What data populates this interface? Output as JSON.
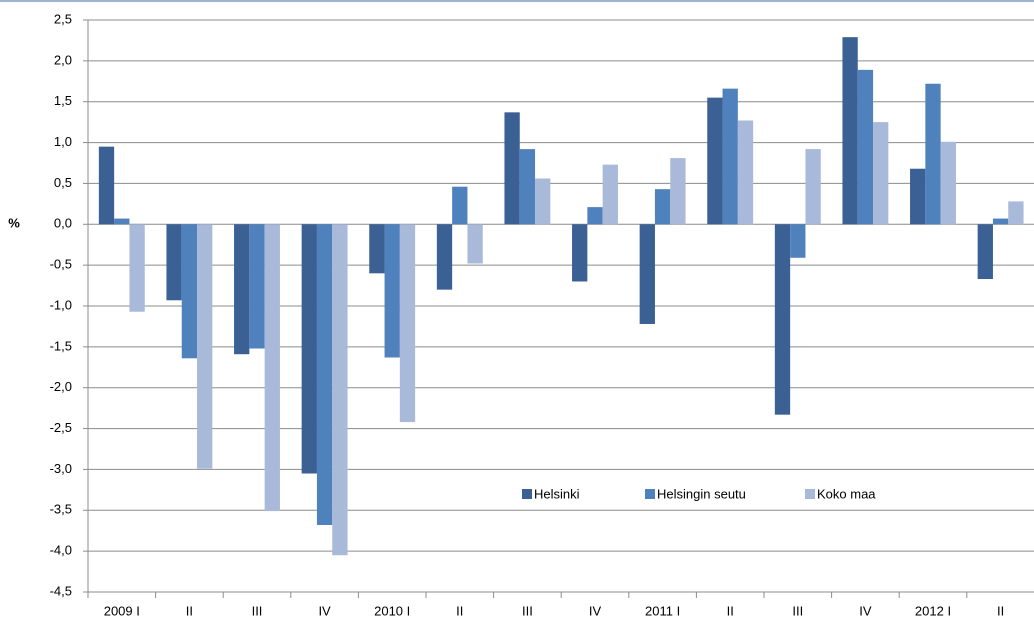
{
  "chart_data": {
    "type": "bar",
    "y_label": "%",
    "categories": [
      "2009 I",
      "II",
      "III",
      "IV",
      "2010 I",
      "II",
      "III",
      "IV",
      "2011 I",
      "II",
      "III",
      "IV",
      "2012 I",
      "II"
    ],
    "series": [
      {
        "name": "Helsinki",
        "color": "#3b6094",
        "values": [
          0.95,
          -0.93,
          -1.59,
          -3.05,
          -0.6,
          -0.8,
          1.37,
          -0.7,
          -1.22,
          1.55,
          -2.33,
          2.29,
          0.68,
          -0.67
        ]
      },
      {
        "name": "Helsingin seutu",
        "color": "#4f81bd",
        "values": [
          0.07,
          -1.64,
          -1.52,
          -3.68,
          -1.63,
          0.46,
          0.92,
          0.21,
          0.43,
          1.66,
          -0.41,
          1.89,
          1.72,
          0.07
        ]
      },
      {
        "name": "Koko maa",
        "color": "#a9b9d9",
        "values": [
          -1.07,
          -2.99,
          -3.51,
          -4.05,
          -2.42,
          -0.48,
          0.56,
          0.73,
          0.81,
          1.27,
          0.92,
          1.25,
          1.01,
          0.28
        ]
      }
    ],
    "ylim": [
      -4.5,
      2.5
    ],
    "yticks": [
      {
        "value": 2.5,
        "label": "2,5"
      },
      {
        "value": 2.0,
        "label": "2,0"
      },
      {
        "value": 1.5,
        "label": "1,5"
      },
      {
        "value": 1.0,
        "label": "1,0"
      },
      {
        "value": 0.5,
        "label": "0,5"
      },
      {
        "value": 0.0,
        "label": "0,0"
      },
      {
        "value": -0.5,
        "label": "-0,5"
      },
      {
        "value": -1.0,
        "label": "-1,0"
      },
      {
        "value": -1.5,
        "label": "-1,5"
      },
      {
        "value": -2.0,
        "label": "-2,0"
      },
      {
        "value": -2.5,
        "label": "-2,5"
      },
      {
        "value": -3.0,
        "label": "-3,0"
      },
      {
        "value": -3.5,
        "label": "-3,5"
      },
      {
        "value": -4.0,
        "label": "-4,0"
      },
      {
        "value": -4.5,
        "label": "-4,5"
      }
    ],
    "grid": true
  }
}
